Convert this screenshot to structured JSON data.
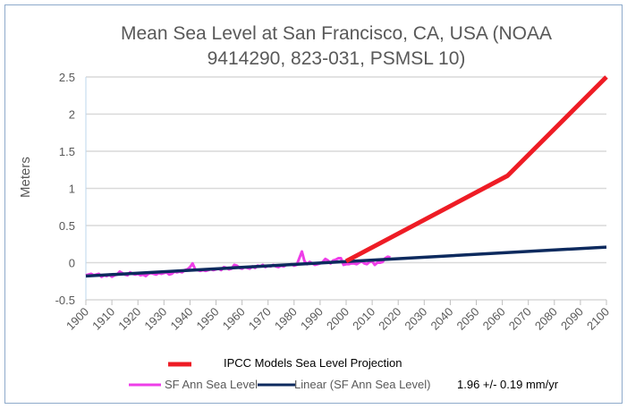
{
  "chart_data": {
    "type": "line",
    "title": "Mean Sea Level at San Francisco, CA, USA  (NOAA 9414290, 823-031, PSMSL 10)",
    "title_lines": [
      "Mean Sea Level at San Francisco, CA, USA  (NOAA",
      "9414290, 823-031, PSMSL 10)"
    ],
    "xlabel": "",
    "ylabel": "Meters",
    "xlim": [
      1900,
      2100
    ],
    "ylim": [
      -0.5,
      2.5
    ],
    "x_ticks": [
      "1900",
      "1910",
      "1920",
      "1930",
      "1940",
      "1950",
      "1960",
      "1970",
      "1980",
      "1990",
      "2000",
      "2010",
      "2020",
      "2030",
      "2040",
      "2050",
      "2060",
      "2070",
      "2080",
      "2090",
      "2100"
    ],
    "y_ticks": [
      "-0.5",
      "0",
      "0.5",
      "1",
      "1.5",
      "2",
      "2.5"
    ],
    "grid": "horizontal",
    "legend_position": "bottom",
    "annotation": "1.96 +/- 0.19 mm/yr",
    "series": [
      {
        "name": "IPCC Models Sea Level Projection",
        "color": "#ee1c25",
        "points": [
          [
            2000,
            0.02
          ],
          [
            2062,
            1.17
          ],
          [
            2100,
            2.5
          ]
        ]
      },
      {
        "name": "SF Ann Sea Level",
        "color": "#ee3ee8",
        "x_start": 1900,
        "values": [
          -0.17,
          -0.16,
          -0.15,
          -0.17,
          -0.16,
          -0.15,
          -0.19,
          -0.17,
          -0.18,
          -0.16,
          -0.19,
          -0.17,
          -0.16,
          -0.12,
          -0.14,
          -0.16,
          -0.17,
          -0.13,
          -0.15,
          -0.16,
          -0.15,
          -0.17,
          -0.16,
          -0.18,
          -0.15,
          -0.14,
          -0.15,
          -0.16,
          -0.14,
          -0.15,
          -0.14,
          -0.13,
          -0.16,
          -0.15,
          -0.12,
          -0.13,
          -0.12,
          -0.13,
          -0.1,
          -0.09,
          -0.06,
          -0.01,
          -0.09,
          -0.1,
          -0.11,
          -0.1,
          -0.11,
          -0.1,
          -0.09,
          -0.1,
          -0.09,
          -0.08,
          -0.1,
          -0.06,
          -0.07,
          -0.09,
          -0.08,
          -0.03,
          -0.04,
          -0.07,
          -0.08,
          -0.06,
          -0.07,
          -0.08,
          -0.05,
          -0.07,
          -0.04,
          -0.05,
          -0.03,
          -0.06,
          -0.04,
          -0.05,
          -0.03,
          -0.05,
          -0.06,
          -0.04,
          -0.05,
          -0.03,
          -0.03,
          -0.02,
          -0.04,
          -0.03,
          0.06,
          0.15,
          0.02,
          -0.02,
          0.01,
          -0.01,
          -0.03,
          -0.02,
          -0.01,
          0.01,
          0.05,
          0.03,
          -0.01,
          0.03,
          0.04,
          0.06,
          0.06,
          -0.03,
          -0.02,
          -0.02,
          -0.01,
          -0.01,
          -0.02,
          0.0,
          0.02,
          -0.01,
          -0.02,
          0.01,
          0.02,
          -0.03,
          0.0,
          0.0,
          0.01,
          0.06,
          0.08,
          0.07
        ]
      },
      {
        "name": "Linear (SF Ann Sea Level)",
        "color": "#0d2a5e",
        "points": [
          [
            1900,
            -0.18
          ],
          [
            2100,
            0.21
          ]
        ]
      }
    ]
  }
}
